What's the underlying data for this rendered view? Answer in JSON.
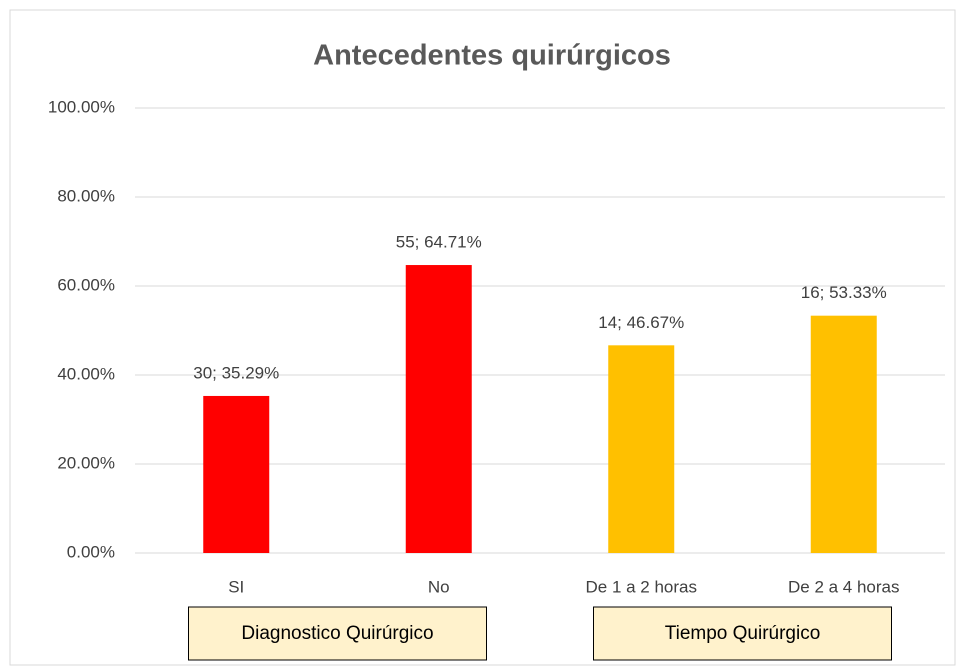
{
  "chart_data": {
    "type": "bar",
    "title": "Antecedentes quirúrgicos",
    "categories": [
      "SI",
      "No",
      "De 1 a 2 horas",
      "De 2 a 4 horas"
    ],
    "values": [
      35.29,
      64.71,
      46.67,
      53.33
    ],
    "value_labels": [
      "30; 35.29%",
      "55; 64.71%",
      "14; 46.67%",
      "16; 53.33%"
    ],
    "colors": [
      "#ff0000",
      "#ff0000",
      "#ffc000",
      "#ffc000"
    ],
    "group_labels": [
      "Diagnostico Quirúrgico",
      "Tiempo Quirúrgico"
    ],
    "ylim": [
      0,
      100
    ],
    "yticks": [
      {
        "value": 0,
        "label": "0.00%"
      },
      {
        "value": 20,
        "label": "20.00%"
      },
      {
        "value": 40,
        "label": "40.00%"
      },
      {
        "value": 60,
        "label": "60.00%"
      },
      {
        "value": 80,
        "label": "80.00%"
      },
      {
        "value": 100,
        "label": "100.00%"
      }
    ],
    "grid": true
  }
}
